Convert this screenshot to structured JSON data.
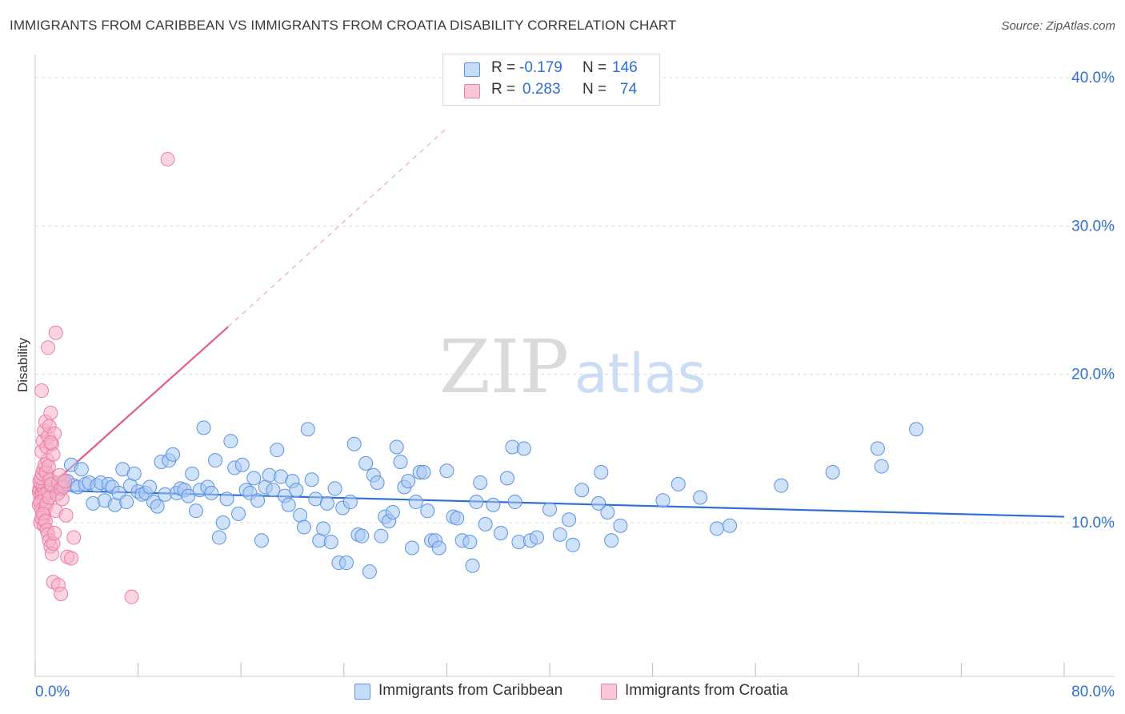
{
  "header": {
    "title": "IMMIGRANTS FROM CARIBBEAN VS IMMIGRANTS FROM CROATIA DISABILITY CORRELATION CHART",
    "source": "Source: ZipAtlas.com"
  },
  "watermark": {
    "zip": "ZIP",
    "atlas": "atlas"
  },
  "legend": {
    "rows": [
      {
        "r_label": "R =",
        "r_value": "-0.179",
        "n_label": "N =",
        "n_value": "146"
      },
      {
        "r_label": "R =",
        "r_value": "0.283",
        "n_label": "N =",
        "n_value": "74"
      }
    ]
  },
  "bottom_legend": {
    "items": [
      {
        "label": "Immigrants from Caribbean"
      },
      {
        "label": "Immigrants from Croatia"
      }
    ]
  },
  "colors": {
    "blue_fill": "#a9c8f5",
    "blue_stroke": "#5a93e0",
    "blue_line": "#2f6fd1",
    "pink_fill": "#f6b3c8",
    "pink_stroke": "#ea7fa0",
    "pink_line": "#e05a8a",
    "axis_label_blue": "#2f6fd1",
    "grid": "#dddddd"
  },
  "chart_data": {
    "type": "scatter",
    "title": "IMMIGRANTS FROM CARIBBEAN VS IMMIGRANTS FROM CROATIA DISABILITY CORRELATION CHART",
    "xlabel": "",
    "ylabel": "Disability",
    "xlim": [
      0,
      80
    ],
    "ylim": [
      0,
      42
    ],
    "x_tick_labels": [
      "0.0%",
      "80.0%"
    ],
    "y_ticks": [
      10,
      20,
      30,
      40
    ],
    "y_tick_labels": [
      "10.0%",
      "20.0%",
      "30.0%",
      "40.0%"
    ],
    "grid": true,
    "legend_position": "top-center",
    "series": [
      {
        "name": "Immigrants from Caribbean",
        "r": -0.179,
        "n": 146,
        "trend": {
          "x": [
            0.3,
            80.0
          ],
          "y": [
            12.2,
            10.4
          ]
        },
        "points": [
          [
            0.8,
            12.5
          ],
          [
            1.0,
            12.0
          ],
          [
            1.2,
            12.8
          ],
          [
            1.5,
            12.3
          ],
          [
            1.8,
            12.0
          ],
          [
            2.0,
            12.6
          ],
          [
            2.2,
            12.7
          ],
          [
            2.5,
            12.8
          ],
          [
            2.8,
            13.9
          ],
          [
            3.0,
            12.5
          ],
          [
            3.3,
            12.4
          ],
          [
            3.6,
            13.6
          ],
          [
            3.9,
            12.6
          ],
          [
            4.2,
            12.7
          ],
          [
            4.5,
            11.3
          ],
          [
            4.8,
            12.5
          ],
          [
            5.1,
            12.7
          ],
          [
            5.4,
            11.5
          ],
          [
            5.7,
            12.6
          ],
          [
            6.0,
            12.4
          ],
          [
            6.2,
            11.2
          ],
          [
            6.5,
            12.0
          ],
          [
            6.8,
            13.6
          ],
          [
            7.1,
            11.4
          ],
          [
            7.4,
            12.5
          ],
          [
            7.7,
            13.3
          ],
          [
            8.0,
            12.1
          ],
          [
            8.3,
            11.9
          ],
          [
            8.6,
            12.0
          ],
          [
            8.9,
            12.4
          ],
          [
            9.2,
            11.4
          ],
          [
            9.5,
            11.1
          ],
          [
            9.8,
            14.1
          ],
          [
            10.1,
            11.9
          ],
          [
            10.4,
            14.2
          ],
          [
            10.7,
            14.6
          ],
          [
            11.0,
            12.0
          ],
          [
            11.3,
            12.3
          ],
          [
            11.6,
            12.2
          ],
          [
            11.9,
            11.8
          ],
          [
            12.2,
            13.3
          ],
          [
            12.5,
            10.8
          ],
          [
            12.8,
            12.2
          ],
          [
            13.1,
            16.4
          ],
          [
            13.4,
            12.4
          ],
          [
            13.7,
            12.0
          ],
          [
            14.0,
            14.2
          ],
          [
            14.3,
            9.0
          ],
          [
            14.6,
            10.0
          ],
          [
            14.9,
            11.6
          ],
          [
            15.2,
            15.5
          ],
          [
            15.5,
            13.7
          ],
          [
            15.8,
            10.6
          ],
          [
            16.1,
            13.9
          ],
          [
            16.4,
            12.2
          ],
          [
            16.7,
            12.0
          ],
          [
            17.0,
            13.0
          ],
          [
            17.3,
            11.5
          ],
          [
            17.6,
            8.8
          ],
          [
            17.9,
            12.4
          ],
          [
            18.2,
            13.2
          ],
          [
            18.5,
            12.2
          ],
          [
            18.8,
            14.9
          ],
          [
            19.1,
            13.1
          ],
          [
            19.4,
            11.8
          ],
          [
            19.7,
            11.2
          ],
          [
            20.0,
            12.8
          ],
          [
            20.3,
            12.2
          ],
          [
            20.6,
            10.5
          ],
          [
            20.9,
            9.7
          ],
          [
            21.2,
            16.3
          ],
          [
            21.5,
            12.9
          ],
          [
            21.8,
            11.6
          ],
          [
            22.1,
            8.8
          ],
          [
            22.4,
            9.6
          ],
          [
            22.7,
            11.3
          ],
          [
            23.0,
            8.7
          ],
          [
            23.3,
            12.3
          ],
          [
            23.6,
            7.3
          ],
          [
            23.9,
            11.0
          ],
          [
            24.2,
            7.3
          ],
          [
            24.5,
            11.4
          ],
          [
            24.8,
            15.3
          ],
          [
            25.1,
            9.2
          ],
          [
            25.4,
            9.1
          ],
          [
            25.7,
            14.0
          ],
          [
            26.0,
            6.7
          ],
          [
            26.3,
            13.2
          ],
          [
            26.6,
            12.7
          ],
          [
            26.9,
            9.1
          ],
          [
            27.2,
            10.4
          ],
          [
            27.5,
            10.1
          ],
          [
            27.8,
            10.7
          ],
          [
            28.1,
            15.1
          ],
          [
            28.4,
            14.1
          ],
          [
            28.7,
            12.4
          ],
          [
            29.0,
            12.8
          ],
          [
            29.3,
            8.3
          ],
          [
            29.6,
            11.4
          ],
          [
            29.9,
            13.4
          ],
          [
            30.2,
            13.4
          ],
          [
            30.5,
            10.8
          ],
          [
            30.8,
            8.8
          ],
          [
            31.1,
            8.8
          ],
          [
            31.4,
            8.3
          ],
          [
            32.0,
            13.5
          ],
          [
            32.5,
            10.4
          ],
          [
            32.8,
            10.3
          ],
          [
            33.2,
            8.8
          ],
          [
            33.8,
            8.7
          ],
          [
            34.0,
            7.1
          ],
          [
            34.3,
            11.4
          ],
          [
            34.6,
            12.7
          ],
          [
            35.0,
            9.9
          ],
          [
            35.6,
            11.2
          ],
          [
            36.2,
            9.3
          ],
          [
            36.7,
            13.0
          ],
          [
            37.1,
            15.1
          ],
          [
            37.3,
            11.4
          ],
          [
            37.6,
            8.7
          ],
          [
            38.0,
            15.0
          ],
          [
            38.5,
            8.8
          ],
          [
            39.0,
            9.0
          ],
          [
            40.0,
            10.9
          ],
          [
            40.8,
            9.2
          ],
          [
            41.5,
            10.2
          ],
          [
            41.8,
            8.5
          ],
          [
            42.5,
            12.2
          ],
          [
            43.8,
            11.3
          ],
          [
            44.0,
            13.4
          ],
          [
            44.5,
            10.7
          ],
          [
            44.8,
            8.8
          ],
          [
            45.5,
            9.8
          ],
          [
            48.8,
            11.5
          ],
          [
            50.0,
            12.6
          ],
          [
            51.7,
            11.7
          ],
          [
            53.0,
            9.6
          ],
          [
            54.0,
            9.8
          ],
          [
            58.0,
            12.5
          ],
          [
            62.0,
            13.4
          ],
          [
            65.5,
            15.0
          ],
          [
            65.8,
            13.8
          ],
          [
            68.5,
            16.3
          ]
        ]
      },
      {
        "name": "Immigrants from Croatia",
        "r": 0.283,
        "n": 74,
        "trend": {
          "x": [
            0.3,
            15.0
          ],
          "y": [
            11.8,
            23.2
          ]
        },
        "trend_extension": {
          "x": [
            15.0,
            32.0
          ],
          "y": [
            23.2,
            36.6
          ]
        },
        "points": [
          [
            0.3,
            12.1
          ],
          [
            0.35,
            12.3
          ],
          [
            0.4,
            11.8
          ],
          [
            0.45,
            12.6
          ],
          [
            0.5,
            11.5
          ],
          [
            0.55,
            12.0
          ],
          [
            0.6,
            12.4
          ],
          [
            0.65,
            11.6
          ],
          [
            0.7,
            12.2
          ],
          [
            0.75,
            11.9
          ],
          [
            0.3,
            11.2
          ],
          [
            0.4,
            11.4
          ],
          [
            0.5,
            10.9
          ],
          [
            0.6,
            10.2
          ],
          [
            0.7,
            10.5
          ],
          [
            0.8,
            11.0
          ],
          [
            0.9,
            11.3
          ],
          [
            1.0,
            12.1
          ],
          [
            1.1,
            11.7
          ],
          [
            1.2,
            12.5
          ],
          [
            0.35,
            12.8
          ],
          [
            0.45,
            13.0
          ],
          [
            0.55,
            13.3
          ],
          [
            0.65,
            13.6
          ],
          [
            0.75,
            13.9
          ],
          [
            0.85,
            13.4
          ],
          [
            0.95,
            14.2
          ],
          [
            1.05,
            13.8
          ],
          [
            1.15,
            12.9
          ],
          [
            1.25,
            12.6
          ],
          [
            0.4,
            10.0
          ],
          [
            0.5,
            10.3
          ],
          [
            0.6,
            10.6
          ],
          [
            0.7,
            9.8
          ],
          [
            0.8,
            10.1
          ],
          [
            0.9,
            9.5
          ],
          [
            1.0,
            9.2
          ],
          [
            1.1,
            8.8
          ],
          [
            1.2,
            8.4
          ],
          [
            1.3,
            7.9
          ],
          [
            1.4,
            8.6
          ],
          [
            1.5,
            9.3
          ],
          [
            1.6,
            10.8
          ],
          [
            1.7,
            11.9
          ],
          [
            1.8,
            12.7
          ],
          [
            1.9,
            13.2
          ],
          [
            2.0,
            12.3
          ],
          [
            2.1,
            11.6
          ],
          [
            2.2,
            12.4
          ],
          [
            2.3,
            12.8
          ],
          [
            0.5,
            14.8
          ],
          [
            0.6,
            15.5
          ],
          [
            0.7,
            16.2
          ],
          [
            0.8,
            16.8
          ],
          [
            0.9,
            15.1
          ],
          [
            1.0,
            15.8
          ],
          [
            1.1,
            16.5
          ],
          [
            1.2,
            17.4
          ],
          [
            1.3,
            15.3
          ],
          [
            1.4,
            14.6
          ],
          [
            0.5,
            18.9
          ],
          [
            1.0,
            21.8
          ],
          [
            1.6,
            22.8
          ],
          [
            1.4,
            6.0
          ],
          [
            1.8,
            5.8
          ],
          [
            2.0,
            5.2
          ],
          [
            7.5,
            5.0
          ],
          [
            2.5,
            7.7
          ],
          [
            2.8,
            7.6
          ],
          [
            3.0,
            9.0
          ],
          [
            2.4,
            10.5
          ],
          [
            1.5,
            16.0
          ],
          [
            1.2,
            15.4
          ],
          [
            10.3,
            34.5
          ]
        ]
      }
    ]
  }
}
